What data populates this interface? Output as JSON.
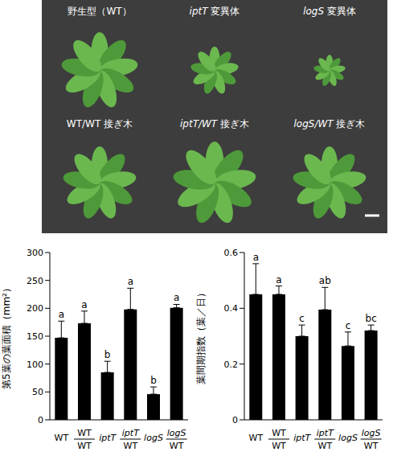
{
  "photo": {
    "labels": [
      "野生型（WT）",
      "iptT 変異体",
      "logS 変異体",
      "WT/WT 接ぎ木",
      "iptT/WT 接ぎ木",
      "logS/WT 接ぎ木"
    ]
  },
  "chart_data": [
    {
      "type": "bar",
      "y_label": "第5葉の葉面積（mm²）",
      "categories": [
        "WT",
        "WT/WT",
        "iptT",
        "iptT/WT",
        "logS",
        "logS/WT"
      ],
      "values": [
        147,
        173,
        85,
        198,
        46,
        201
      ],
      "errors": [
        30,
        22,
        20,
        38,
        13,
        6
      ],
      "significance": [
        "a",
        "a",
        "b",
        "a",
        "b",
        "a"
      ],
      "color": "#000000",
      "ylim": [
        0,
        300
      ],
      "yticks": [
        0,
        50,
        100,
        150,
        200,
        250,
        300
      ]
    },
    {
      "type": "bar",
      "y_label": "葉間期指数（葉／日）",
      "categories": [
        "WT",
        "WT/WT",
        "iptT",
        "iptT/WT",
        "logS",
        "logS/WT"
      ],
      "values": [
        0.45,
        0.45,
        0.3,
        0.395,
        0.265,
        0.32
      ],
      "errors": [
        0.11,
        0.03,
        0.04,
        0.08,
        0.05,
        0.02
      ],
      "significance": [
        "a",
        "a",
        "c",
        "ab",
        "c",
        "bc"
      ],
      "color": "#000000",
      "ylim": [
        0,
        0.6
      ],
      "yticks": [
        0,
        0.2,
        0.4,
        0.6
      ]
    }
  ]
}
